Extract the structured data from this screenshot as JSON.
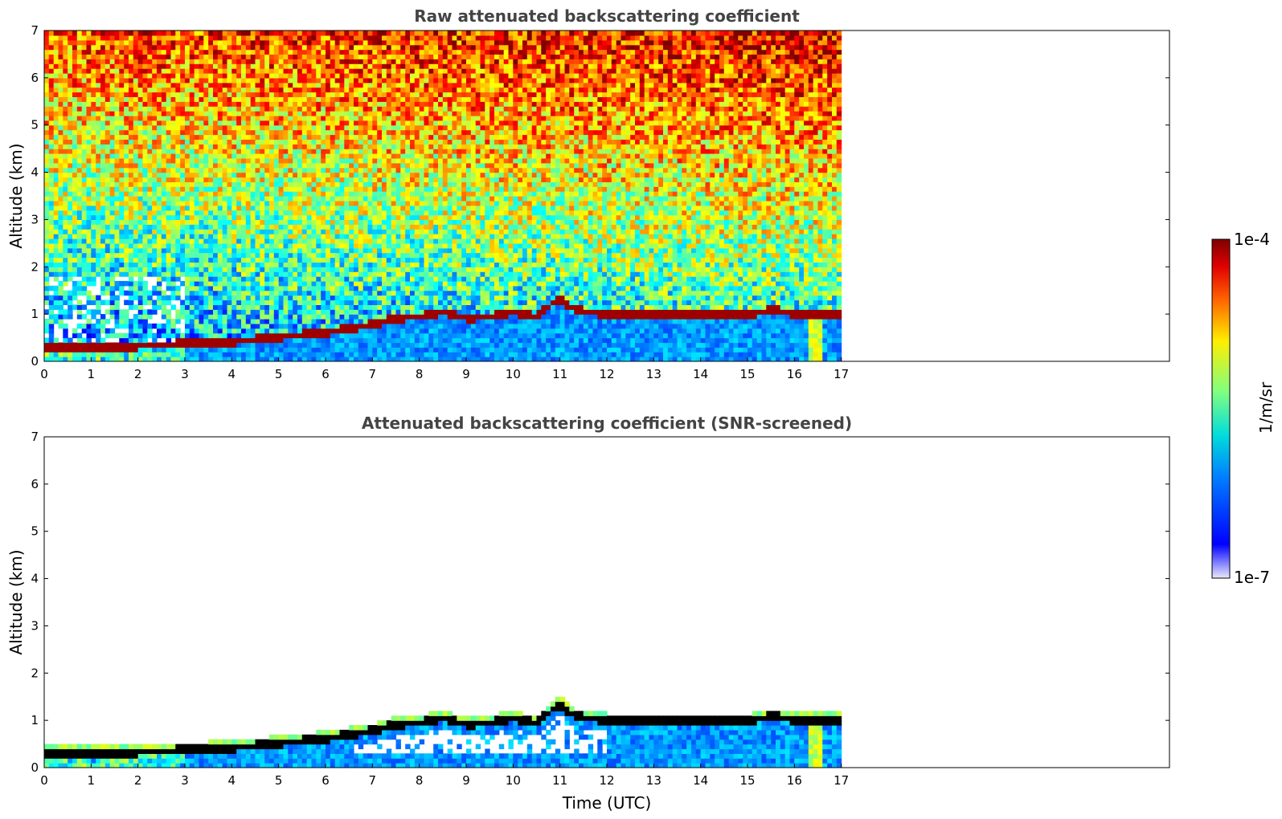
{
  "chart_data": [
    {
      "type": "heatmap",
      "title": "Raw attenuated backscattering coefficient",
      "xlabel": "",
      "ylabel": "Altitude (km)",
      "xlim": [
        0,
        24
      ],
      "ylim": [
        0,
        7
      ],
      "xticks": [
        0,
        1,
        2,
        3,
        4,
        5,
        6,
        7,
        8,
        9,
        10,
        11,
        12,
        13,
        14,
        15,
        16,
        17
      ],
      "yticks": [
        0,
        1,
        2,
        3,
        4,
        5,
        6,
        7
      ],
      "data_end_time": 17,
      "screened": false,
      "layer_top_km": [
        [
          0,
          0.3
        ],
        [
          1,
          0.32
        ],
        [
          2,
          0.33
        ],
        [
          3,
          0.38
        ],
        [
          4,
          0.42
        ],
        [
          5,
          0.52
        ],
        [
          6,
          0.62
        ],
        [
          7,
          0.78
        ],
        [
          7.5,
          0.92
        ],
        [
          8,
          0.95
        ],
        [
          8.5,
          1.05
        ],
        [
          9,
          0.92
        ],
        [
          9.5,
          0.95
        ],
        [
          10,
          1.05
        ],
        [
          10.5,
          0.95
        ],
        [
          11,
          1.35
        ],
        [
          11.3,
          1.1
        ],
        [
          12,
          1.0
        ],
        [
          13,
          0.98
        ],
        [
          14,
          0.97
        ],
        [
          15,
          0.98
        ],
        [
          15.5,
          1.1
        ],
        [
          16,
          1.02
        ],
        [
          17,
          1.0
        ]
      ]
    },
    {
      "type": "heatmap",
      "title": "Attenuated backscattering coefficient (SNR-screened)",
      "xlabel": "Time (UTC)",
      "ylabel": "Altitude (km)",
      "xlim": [
        0,
        24
      ],
      "ylim": [
        0,
        7
      ],
      "xticks": [
        0,
        1,
        2,
        3,
        4,
        5,
        6,
        7,
        8,
        9,
        10,
        11,
        12,
        13,
        14,
        15,
        16,
        17
      ],
      "yticks": [
        0,
        1,
        2,
        3,
        4,
        5,
        6,
        7
      ],
      "data_end_time": 17,
      "screened": true
    }
  ],
  "colorbar": {
    "max_label": "1e-4",
    "min_label": "1e-7",
    "units": "1/m/sr",
    "colormap": "jet"
  }
}
